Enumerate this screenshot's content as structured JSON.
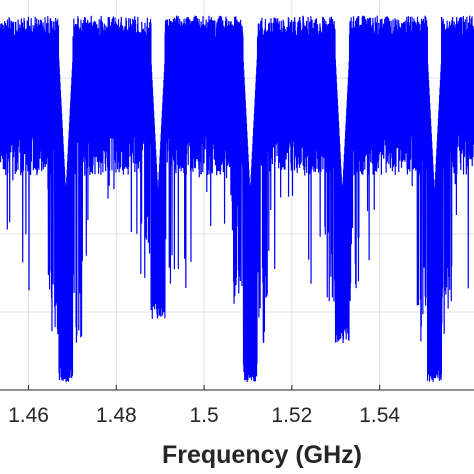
{
  "chart_data": {
    "type": "line",
    "title": "",
    "xlabel": "Frequency (GHz)",
    "ylabel": "",
    "x_ticks": [
      1.46,
      1.48,
      1.5,
      1.52,
      1.54
    ],
    "x_tick_labels": [
      "1.46",
      "1.48",
      "1.5",
      "1.52",
      "1.54"
    ],
    "xlim": [
      1.4535,
      1.5615
    ],
    "ylim": [
      0,
      1
    ],
    "grid": true,
    "series_color": "#0000ff",
    "band_level": 0.9,
    "band_floor": 0.55,
    "notches": [
      {
        "x": 1.4685,
        "depth": 0.02
      },
      {
        "x": 1.4895,
        "depth": 0.18
      },
      {
        "x": 1.5105,
        "depth": 0.02
      },
      {
        "x": 1.5315,
        "depth": 0.12
      },
      {
        "x": 1.5525,
        "depth": 0.02
      }
    ]
  }
}
